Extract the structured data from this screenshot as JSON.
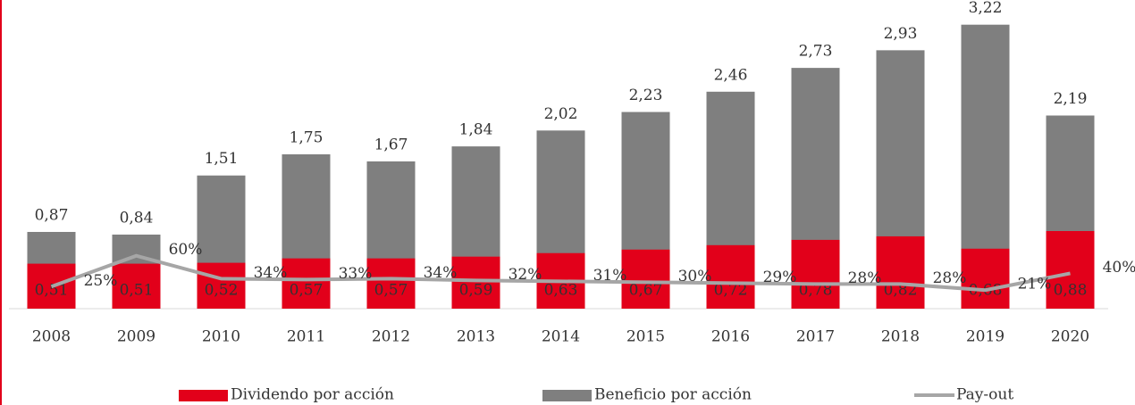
{
  "chart_data": {
    "type": "bar",
    "categories": [
      "2008",
      "2009",
      "2010",
      "2011",
      "2012",
      "2013",
      "2014",
      "2015",
      "2016",
      "2017",
      "2018",
      "2019",
      "2020"
    ],
    "series": [
      {
        "name": "Beneficio por acción",
        "color": "#7f7f7f",
        "values": [
          0.87,
          0.84,
          1.51,
          1.75,
          1.67,
          1.84,
          2.02,
          2.23,
          2.46,
          2.73,
          2.93,
          3.22,
          2.19
        ],
        "value_labels": [
          "0,87",
          "0,84",
          "1,51",
          "1,75",
          "1,67",
          "1,84",
          "2,02",
          "2,23",
          "2,46",
          "2,73",
          "2,93",
          "3,22",
          "2,19"
        ]
      },
      {
        "name": "Dividendo por acción",
        "color": "#e2001a",
        "values": [
          0.51,
          0.51,
          0.52,
          0.57,
          0.57,
          0.59,
          0.63,
          0.67,
          0.72,
          0.78,
          0.82,
          0.68,
          0.88
        ],
        "value_labels": [
          "0,51",
          "0,51",
          "0,52",
          "0,57",
          "0,57",
          "0,59",
          "0,63",
          "0,67",
          "0,72",
          "0,78",
          "0,82",
          "0,68",
          "0,88"
        ]
      },
      {
        "name": "Pay-out",
        "type": "line",
        "axis": "y2",
        "color": "#a6a6a6",
        "values": [
          25,
          60,
          34,
          33,
          34,
          32,
          31,
          30,
          29,
          28,
          28,
          21,
          40
        ],
        "value_labels": [
          "25%",
          "60%",
          "34%",
          "33%",
          "34%",
          "32%",
          "31%",
          "30%",
          "29%",
          "28%",
          "28%",
          "21%",
          "40%"
        ]
      }
    ],
    "ylim": [
      0,
      3.5
    ],
    "y2lim": [
      0,
      350
    ]
  }
}
